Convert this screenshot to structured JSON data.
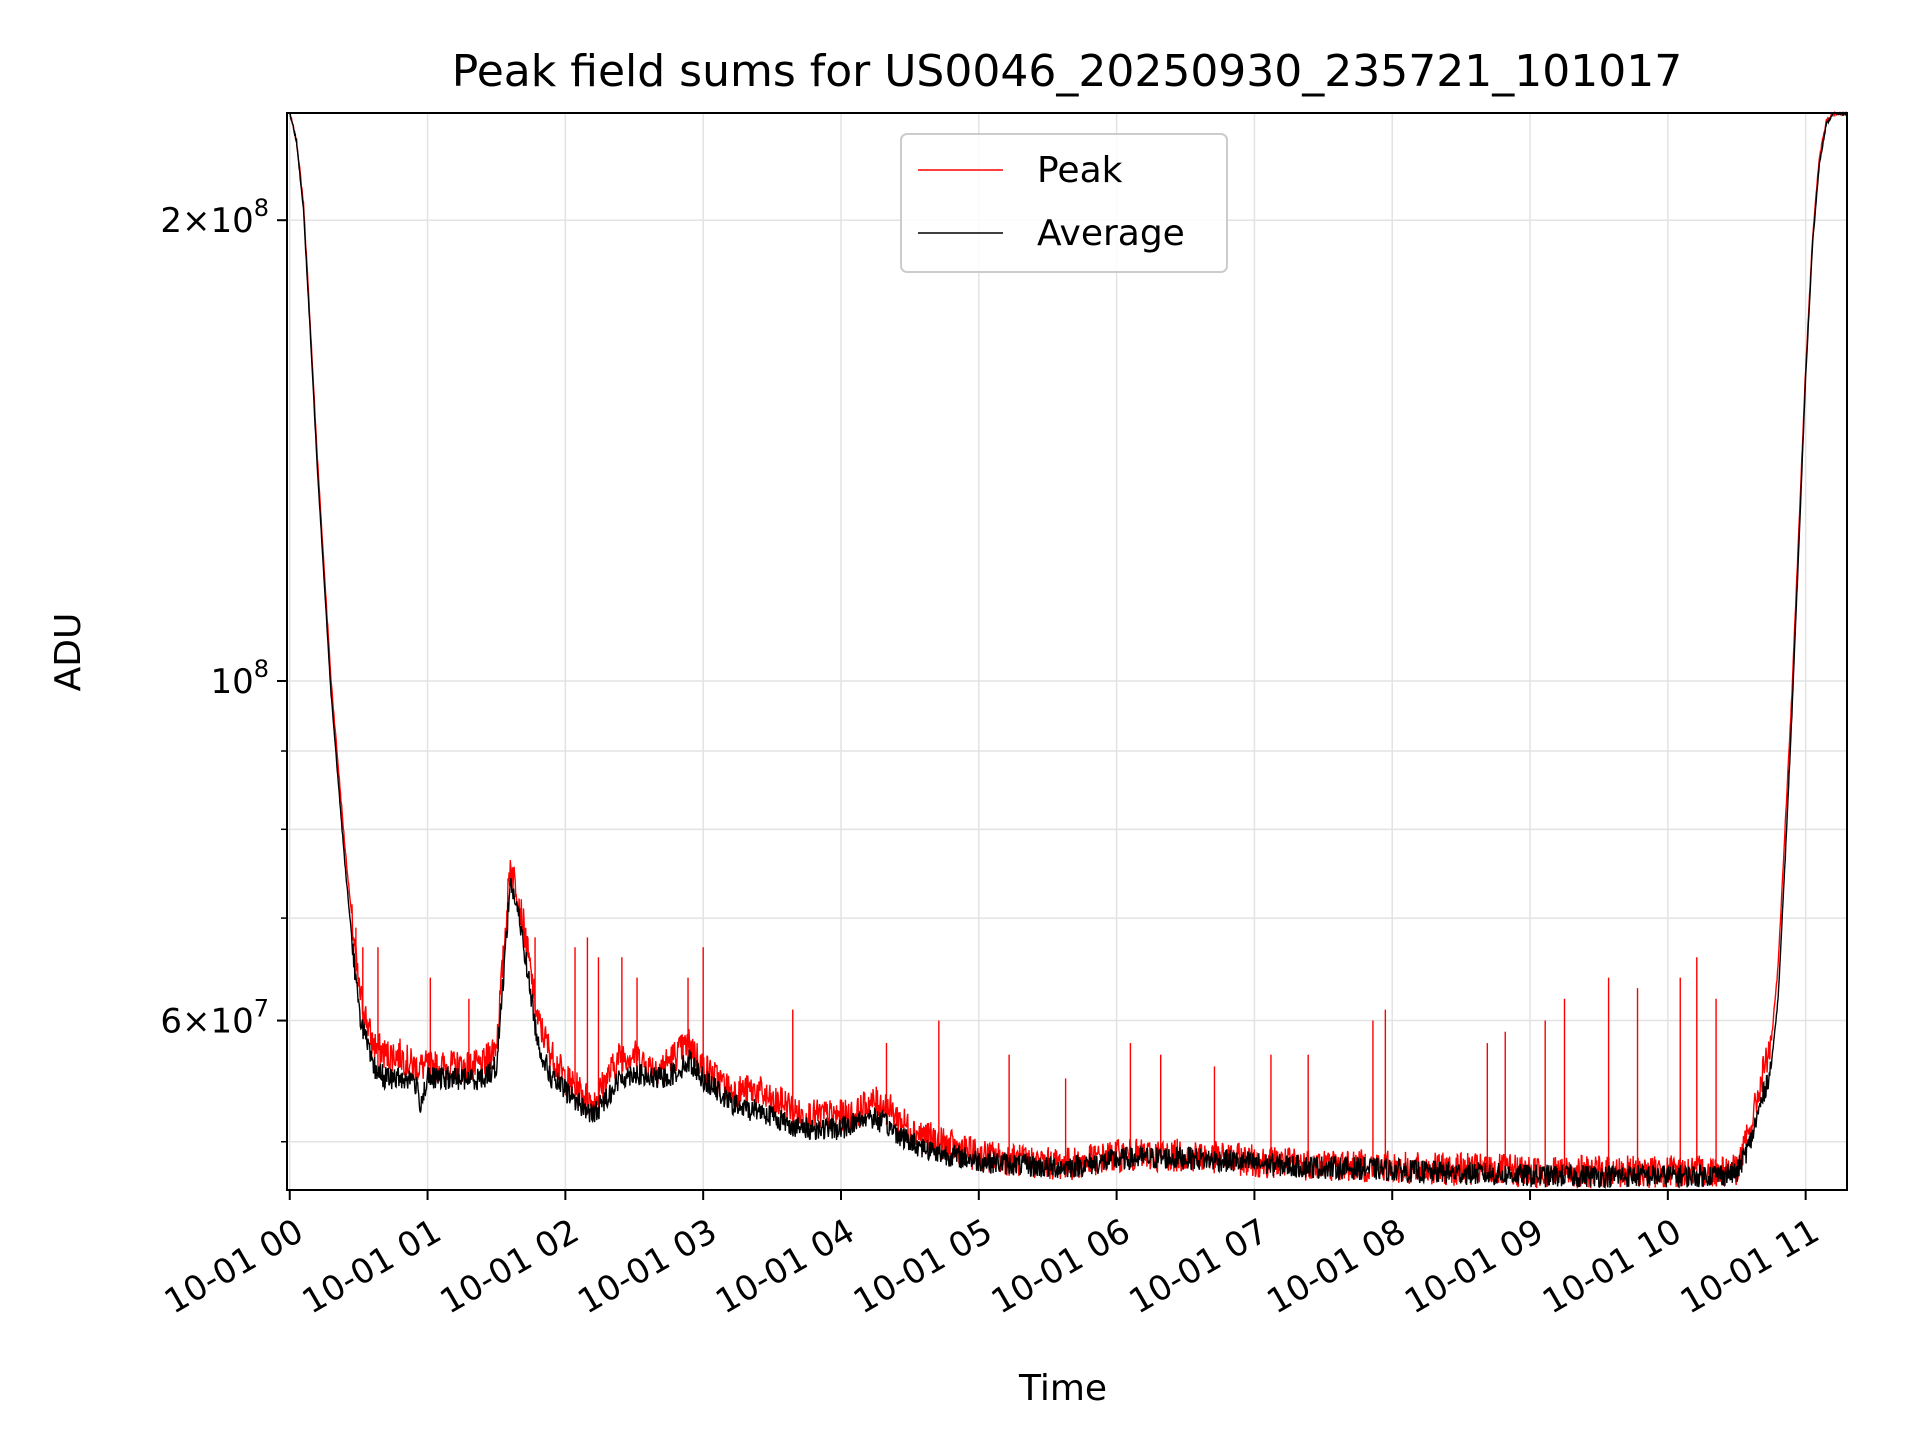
{
  "chart_data": {
    "type": "line",
    "title": "Peak field sums for US0046_20250930_235721_101017",
    "xlabel": "Time",
    "ylabel": "ADU",
    "yscale": "log",
    "xlim": [
      -0.02,
      11.3
    ],
    "ylim": [
      46500000,
      235000000
    ],
    "grid": true,
    "legend_position": "upper-center",
    "x_ticks": [
      {
        "value": 0,
        "label": "10-01 00"
      },
      {
        "value": 1,
        "label": "10-01 01"
      },
      {
        "value": 2,
        "label": "10-01 02"
      },
      {
        "value": 3,
        "label": "10-01 03"
      },
      {
        "value": 4,
        "label": "10-01 04"
      },
      {
        "value": 5,
        "label": "10-01 05"
      },
      {
        "value": 6,
        "label": "10-01 06"
      },
      {
        "value": 7,
        "label": "10-01 07"
      },
      {
        "value": 8,
        "label": "10-01 08"
      },
      {
        "value": 9,
        "label": "10-01 09"
      },
      {
        "value": 10,
        "label": "10-01 10"
      },
      {
        "value": 11,
        "label": "10-01 11"
      }
    ],
    "y_ticks_major": [
      {
        "value": 100000000,
        "mantissa": "",
        "base": "10",
        "exp": "8"
      },
      {
        "value": 200000000,
        "mantissa": "2×",
        "base": "10",
        "exp": "8"
      },
      {
        "value": 60000000,
        "mantissa": "6×",
        "base": "10",
        "exp": "7"
      }
    ],
    "y_ticks_minor": [
      50000000,
      70000000,
      80000000,
      90000000
    ],
    "series": [
      {
        "name": "Peak",
        "color": "#ff0000",
        "x": [
          0.0,
          0.05,
          0.1,
          0.15,
          0.2,
          0.3,
          0.4,
          0.5,
          0.6,
          0.7,
          0.8,
          0.9,
          0.95,
          1.0,
          1.2,
          1.4,
          1.5,
          1.55,
          1.6,
          1.65,
          1.7,
          1.8,
          1.9,
          2.0,
          2.1,
          2.2,
          2.3,
          2.4,
          2.5,
          2.6,
          2.7,
          2.8,
          2.9,
          3.0,
          3.1,
          3.2,
          3.3,
          3.4,
          3.5,
          3.6,
          3.7,
          3.8,
          3.9,
          4.0,
          4.1,
          4.2,
          4.3,
          4.5,
          4.7,
          5.0,
          5.3,
          5.5,
          5.7,
          5.9,
          6.0,
          6.2,
          6.5,
          6.8,
          7.0,
          7.3,
          7.6,
          7.9,
          8.2,
          8.5,
          8.8,
          9.0,
          9.3,
          9.6,
          9.9,
          10.2,
          10.5,
          10.6,
          10.7,
          10.75,
          10.8,
          10.85,
          10.9,
          10.95,
          11.0,
          11.05,
          11.1,
          11.15,
          11.2,
          11.3
        ],
        "y": [
          235000000,
          225000000,
          205000000,
          170000000,
          140000000,
          100000000,
          78000000,
          63000000,
          58000000,
          57000000,
          57000000,
          56000000,
          56000000,
          56000000,
          56000000,
          56000000,
          58000000,
          66000000,
          76000000,
          73000000,
          69000000,
          60000000,
          57000000,
          55000000,
          54000000,
          53000000,
          55000000,
          57000000,
          57000000,
          56000000,
          56000000,
          57000000,
          58000000,
          56000000,
          55000000,
          54000000,
          54000000,
          54000000,
          53000000,
          53000000,
          52000000,
          52000000,
          52000000,
          52000000,
          52000000,
          53000000,
          53000000,
          51000000,
          50000000,
          49000000,
          48600000,
          48400000,
          48400000,
          48800000,
          49000000,
          49000000,
          49000000,
          48800000,
          48600000,
          48400000,
          48300000,
          48200000,
          48000000,
          48000000,
          47900000,
          47800000,
          47800000,
          47800000,
          47800000,
          47800000,
          48000000,
          51000000,
          56000000,
          58000000,
          65000000,
          80000000,
          98000000,
          125000000,
          160000000,
          195000000,
          220000000,
          232000000,
          235000000,
          235000000
        ]
      },
      {
        "name": "Average",
        "color": "#000000",
        "x": [
          0.0,
          0.05,
          0.1,
          0.15,
          0.2,
          0.3,
          0.4,
          0.5,
          0.6,
          0.7,
          0.8,
          0.9,
          0.95,
          1.0,
          1.2,
          1.4,
          1.5,
          1.55,
          1.6,
          1.65,
          1.7,
          1.8,
          1.9,
          2.0,
          2.1,
          2.2,
          2.3,
          2.4,
          2.5,
          2.6,
          2.7,
          2.8,
          2.9,
          3.0,
          3.1,
          3.2,
          3.3,
          3.4,
          3.5,
          3.6,
          3.7,
          3.8,
          3.9,
          4.0,
          4.1,
          4.2,
          4.3,
          4.5,
          4.7,
          5.0,
          5.3,
          5.5,
          5.7,
          5.9,
          6.0,
          6.2,
          6.5,
          6.8,
          7.0,
          7.3,
          7.6,
          7.9,
          8.2,
          8.5,
          8.8,
          9.0,
          9.3,
          9.6,
          9.9,
          10.2,
          10.5,
          10.6,
          10.7,
          10.75,
          10.8,
          10.85,
          10.9,
          10.95,
          11.0,
          11.05,
          11.1,
          11.15,
          11.2,
          11.3
        ],
        "y": [
          235000000,
          225000000,
          203000000,
          168000000,
          138000000,
          98000000,
          76000000,
          61000000,
          56000000,
          55000000,
          55000000,
          55000000,
          53000000,
          55000000,
          55000000,
          55000000,
          56000000,
          64000000,
          74000000,
          71000000,
          67000000,
          58000000,
          55000000,
          54000000,
          53000000,
          52000000,
          53500000,
          55000000,
          55500000,
          55000000,
          55000000,
          55500000,
          56500000,
          55000000,
          54000000,
          53000000,
          52500000,
          52500000,
          52000000,
          51500000,
          51000000,
          51000000,
          51000000,
          51000000,
          51500000,
          52000000,
          51500000,
          50000000,
          49200000,
          48600000,
          48300000,
          48100000,
          48200000,
          48500000,
          48700000,
          48800000,
          48800000,
          48600000,
          48400000,
          48200000,
          48100000,
          48000000,
          47800000,
          47700000,
          47600000,
          47500000,
          47500000,
          47500000,
          47500000,
          47500000,
          47700000,
          50000000,
          54000000,
          56000000,
          62000000,
          76000000,
          95000000,
          122000000,
          158000000,
          193000000,
          218000000,
          231000000,
          235000000,
          235000000
        ]
      }
    ],
    "spikes": [
      {
        "x": 0.48,
        "y": 69000000
      },
      {
        "x": 0.53,
        "y": 67000000
      },
      {
        "x": 0.64,
        "y": 67000000
      },
      {
        "x": 1.02,
        "y": 64000000
      },
      {
        "x": 1.3,
        "y": 62000000
      },
      {
        "x": 1.78,
        "y": 68000000
      },
      {
        "x": 2.07,
        "y": 67000000
      },
      {
        "x": 2.16,
        "y": 68000000
      },
      {
        "x": 2.24,
        "y": 66000000
      },
      {
        "x": 2.41,
        "y": 66000000
      },
      {
        "x": 2.52,
        "y": 64000000
      },
      {
        "x": 2.89,
        "y": 64000000
      },
      {
        "x": 3.0,
        "y": 67000000
      },
      {
        "x": 3.65,
        "y": 61000000
      },
      {
        "x": 4.33,
        "y": 58000000
      },
      {
        "x": 4.71,
        "y": 60000000
      },
      {
        "x": 5.22,
        "y": 57000000
      },
      {
        "x": 5.63,
        "y": 55000000
      },
      {
        "x": 6.1,
        "y": 58000000
      },
      {
        "x": 6.32,
        "y": 57000000
      },
      {
        "x": 6.71,
        "y": 56000000
      },
      {
        "x": 7.12,
        "y": 57000000
      },
      {
        "x": 7.39,
        "y": 57000000
      },
      {
        "x": 7.86,
        "y": 60000000
      },
      {
        "x": 7.95,
        "y": 61000000
      },
      {
        "x": 8.69,
        "y": 58000000
      },
      {
        "x": 8.82,
        "y": 59000000
      },
      {
        "x": 9.11,
        "y": 60000000
      },
      {
        "x": 9.25,
        "y": 62000000
      },
      {
        "x": 9.57,
        "y": 64000000
      },
      {
        "x": 9.78,
        "y": 63000000
      },
      {
        "x": 10.09,
        "y": 64000000
      },
      {
        "x": 10.21,
        "y": 66000000
      },
      {
        "x": 10.35,
        "y": 62000000
      }
    ]
  },
  "legend": {
    "items": [
      {
        "label": "Peak",
        "color": "#ff0000"
      },
      {
        "label": "Average",
        "color": "#000000"
      }
    ]
  }
}
